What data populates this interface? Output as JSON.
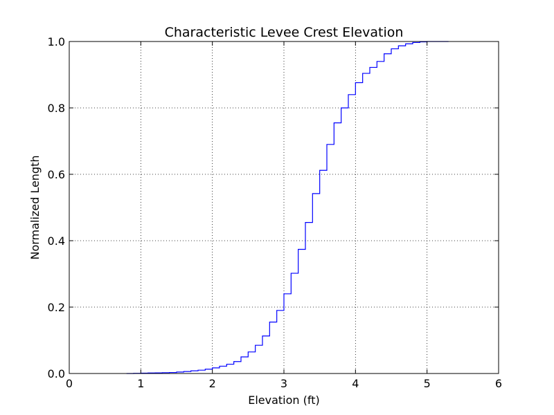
{
  "chart_data": {
    "type": "line",
    "step": true,
    "title": "Characteristic Levee Crest Elevation",
    "xlabel": "Elevation (ft)",
    "ylabel": "Normalized Length",
    "xlim": [
      0,
      6
    ],
    "ylim": [
      0,
      1.0
    ],
    "xticks": [
      0,
      1,
      2,
      3,
      4,
      5,
      6
    ],
    "xtick_labels": [
      "0",
      "1",
      "2",
      "3",
      "4",
      "5",
      "6"
    ],
    "yticks": [
      0,
      0.2,
      0.4,
      0.6,
      0.8,
      1.0
    ],
    "ytick_labels": [
      "0.0",
      "0.2",
      "0.4",
      "0.6",
      "0.8",
      "1.0"
    ],
    "grid": true,
    "line_color": "#0000ff",
    "series": [
      {
        "x": [
          0.8,
          0.9,
          1.0,
          1.1,
          1.2,
          1.3,
          1.4,
          1.5,
          1.6,
          1.7,
          1.8,
          1.9,
          2.0,
          2.1,
          2.2,
          2.3,
          2.4,
          2.5,
          2.6,
          2.7,
          2.8,
          2.9,
          3.0,
          3.1,
          3.2,
          3.3,
          3.4,
          3.5,
          3.6,
          3.7,
          3.8,
          3.9,
          4.0,
          4.1,
          4.2,
          4.3,
          4.4,
          4.5,
          4.6,
          4.7,
          4.8,
          4.9,
          5.0,
          5.3
        ],
        "y": [
          0.0,
          0.0005,
          0.001,
          0.0015,
          0.002,
          0.0025,
          0.003,
          0.0045,
          0.006,
          0.008,
          0.01,
          0.013,
          0.017,
          0.022,
          0.028,
          0.036,
          0.05,
          0.065,
          0.085,
          0.113,
          0.155,
          0.19,
          0.24,
          0.302,
          0.374,
          0.455,
          0.542,
          0.612,
          0.69,
          0.755,
          0.8,
          0.84,
          0.876,
          0.904,
          0.922,
          0.94,
          0.963,
          0.978,
          0.987,
          0.993,
          0.997,
          0.999,
          1.0,
          1.0
        ]
      }
    ]
  }
}
